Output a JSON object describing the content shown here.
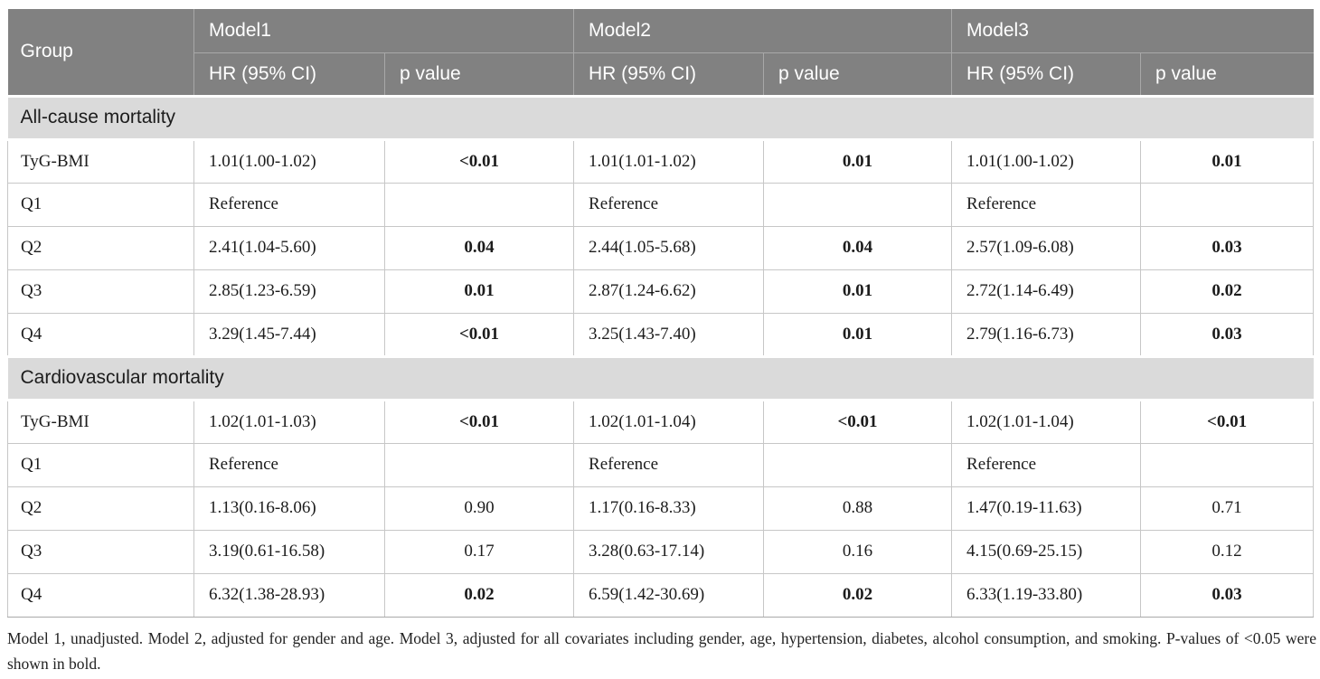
{
  "colors": {
    "header_bg": "#818181",
    "header_sep": "#a8a8a8",
    "header_text": "#ffffff",
    "section_bg": "#dadada",
    "border_color": "#c7c7c7",
    "bottom_border": "#a9a9a9",
    "text_color": "#1c1c1c",
    "page_bg": "#ffffff"
  },
  "table": {
    "header": {
      "group_label": "Group",
      "models": [
        "Model1",
        "Model2",
        "Model3"
      ],
      "sub_headers": [
        "HR (95% CI)",
        "p value"
      ]
    },
    "sections": [
      {
        "title": "All-cause mortality",
        "rows": [
          {
            "group": "TyG-BMI",
            "models": [
              {
                "hr": "1.01(1.00-1.02)",
                "p": "<0.01",
                "p_bold": true
              },
              {
                "hr": "1.01(1.01-1.02)",
                "p": "0.01",
                "p_bold": true
              },
              {
                "hr": "1.01(1.00-1.02)",
                "p": "0.01",
                "p_bold": true
              }
            ]
          },
          {
            "group": "Q1",
            "models": [
              {
                "hr": "Reference",
                "p": "",
                "p_bold": false
              },
              {
                "hr": "Reference",
                "p": "",
                "p_bold": false
              },
              {
                "hr": "Reference",
                "p": "",
                "p_bold": false
              }
            ]
          },
          {
            "group": "Q2",
            "models": [
              {
                "hr": "2.41(1.04-5.60)",
                "p": "0.04",
                "p_bold": true
              },
              {
                "hr": "2.44(1.05-5.68)",
                "p": "0.04",
                "p_bold": true
              },
              {
                "hr": "2.57(1.09-6.08)",
                "p": "0.03",
                "p_bold": true
              }
            ]
          },
          {
            "group": "Q3",
            "models": [
              {
                "hr": "2.85(1.23-6.59)",
                "p": "0.01",
                "p_bold": true
              },
              {
                "hr": "2.87(1.24-6.62)",
                "p": "0.01",
                "p_bold": true
              },
              {
                "hr": "2.72(1.14-6.49)",
                "p": "0.02",
                "p_bold": true
              }
            ]
          },
          {
            "group": "Q4",
            "models": [
              {
                "hr": "3.29(1.45-7.44)",
                "p": "<0.01",
                "p_bold": true
              },
              {
                "hr": "3.25(1.43-7.40)",
                "p": "0.01",
                "p_bold": true
              },
              {
                "hr": "2.79(1.16-6.73)",
                "p": "0.03",
                "p_bold": true
              }
            ]
          }
        ]
      },
      {
        "title": "Cardiovascular mortality",
        "rows": [
          {
            "group": "TyG-BMI",
            "models": [
              {
                "hr": "1.02(1.01-1.03)",
                "p": "<0.01",
                "p_bold": true
              },
              {
                "hr": "1.02(1.01-1.04)",
                "p": "<0.01",
                "p_bold": true
              },
              {
                "hr": "1.02(1.01-1.04)",
                "p": "<0.01",
                "p_bold": true
              }
            ]
          },
          {
            "group": "Q1",
            "models": [
              {
                "hr": "Reference",
                "p": "",
                "p_bold": false
              },
              {
                "hr": "Reference",
                "p": "",
                "p_bold": false
              },
              {
                "hr": "Reference",
                "p": "",
                "p_bold": false
              }
            ]
          },
          {
            "group": "Q2",
            "models": [
              {
                "hr": "1.13(0.16-8.06)",
                "p": "0.90",
                "p_bold": false
              },
              {
                "hr": "1.17(0.16-8.33)",
                "p": "0.88",
                "p_bold": false
              },
              {
                "hr": "1.47(0.19-11.63)",
                "p": "0.71",
                "p_bold": false
              }
            ]
          },
          {
            "group": "Q3",
            "models": [
              {
                "hr": "3.19(0.61-16.58)",
                "p": "0.17",
                "p_bold": false
              },
              {
                "hr": "3.28(0.63-17.14)",
                "p": "0.16",
                "p_bold": false
              },
              {
                "hr": "4.15(0.69-25.15)",
                "p": "0.12",
                "p_bold": false
              }
            ]
          },
          {
            "group": "Q4",
            "models": [
              {
                "hr": "6.32(1.38-28.93)",
                "p": "0.02",
                "p_bold": true
              },
              {
                "hr": "6.59(1.42-30.69)",
                "p": "0.02",
                "p_bold": true
              },
              {
                "hr": "6.33(1.19-33.80)",
                "p": "0.03",
                "p_bold": true
              }
            ]
          }
        ]
      }
    ],
    "footnote": "Model 1, unadjusted. Model 2, adjusted for gender and age. Model 3, adjusted for all covariates including gender, age, hypertension, diabetes, alcohol consumption, and smoking. P-values of <0.05 were shown in bold."
  }
}
